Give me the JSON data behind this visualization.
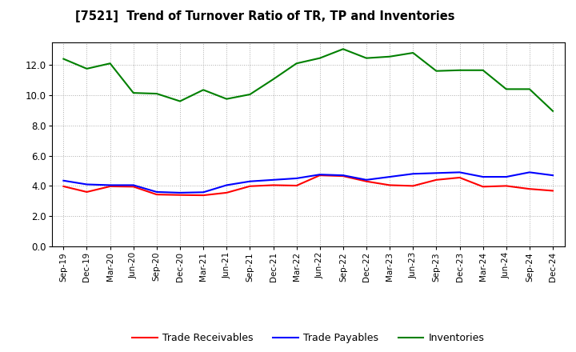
{
  "title": "[7521]  Trend of Turnover Ratio of TR, TP and Inventories",
  "x_labels": [
    "Sep-19",
    "Dec-19",
    "Mar-20",
    "Jun-20",
    "Sep-20",
    "Dec-20",
    "Mar-21",
    "Jun-21",
    "Sep-21",
    "Dec-21",
    "Mar-22",
    "Jun-22",
    "Sep-22",
    "Dec-22",
    "Mar-23",
    "Jun-23",
    "Sep-23",
    "Dec-23",
    "Mar-24",
    "Jun-24",
    "Sep-24",
    "Dec-24"
  ],
  "trade_receivables": [
    3.97,
    3.6,
    3.97,
    3.95,
    3.43,
    3.4,
    3.38,
    3.55,
    3.98,
    4.05,
    4.02,
    4.7,
    4.65,
    4.3,
    4.05,
    4.0,
    4.4,
    4.55,
    3.95,
    4.0,
    3.8,
    3.68
  ],
  "trade_payables": [
    4.35,
    4.1,
    4.05,
    4.05,
    3.6,
    3.55,
    3.58,
    4.05,
    4.3,
    4.4,
    4.5,
    4.75,
    4.7,
    4.4,
    4.6,
    4.8,
    4.85,
    4.9,
    4.6,
    4.6,
    4.9,
    4.7
  ],
  "inventories": [
    12.4,
    11.75,
    12.1,
    10.15,
    10.1,
    9.6,
    10.35,
    9.75,
    10.05,
    11.05,
    12.1,
    12.45,
    13.05,
    12.45,
    12.55,
    12.8,
    11.6,
    11.65,
    11.65,
    10.4,
    10.4,
    8.95
  ],
  "ylim": [
    0,
    13.5
  ],
  "yticks": [
    0.0,
    2.0,
    4.0,
    6.0,
    8.0,
    10.0,
    12.0
  ],
  "color_tr": "#ff0000",
  "color_tp": "#0000ff",
  "color_inv": "#008000",
  "bg_color": "#ffffff",
  "plot_bg_color": "#ffffff",
  "grid_color": "#999999",
  "legend_labels": [
    "Trade Receivables",
    "Trade Payables",
    "Inventories"
  ]
}
